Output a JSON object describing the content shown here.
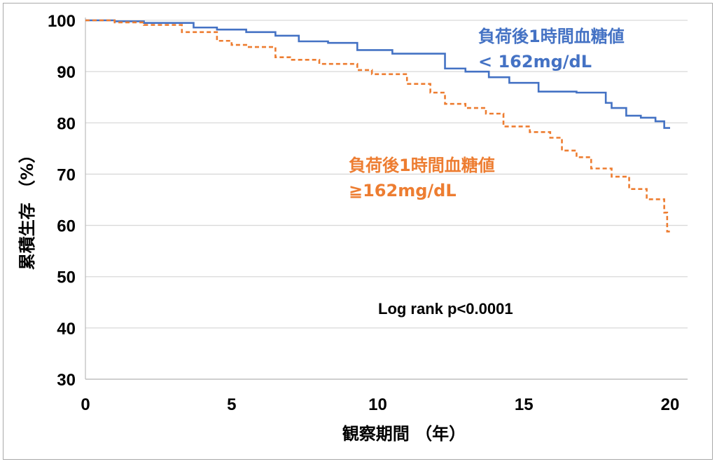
{
  "chart_data": {
    "type": "line",
    "title": "",
    "xlabel": "観察期間 （年）",
    "ylabel": "累積生存 （%）",
    "xlim": [
      0,
      20
    ],
    "ylim": [
      30,
      100
    ],
    "x_ticks": [
      "0",
      "5",
      "10",
      "15",
      "20"
    ],
    "y_ticks": [
      "100",
      "90",
      "80",
      "70",
      "60",
      "50",
      "40",
      "30"
    ],
    "grid": "horizontal",
    "annotation": "Log rank p<0.0001",
    "series": [
      {
        "name": "負荷後1時間血糖値 < 162mg/dL",
        "label_lines": [
          "負荷後1時間血糖値",
          "< 162mg/dL"
        ],
        "color": "#4472c4",
        "style": "solid",
        "x": [
          0,
          1,
          2,
          3,
          3.7,
          4.5,
          5.5,
          6.5,
          7.3,
          8.3,
          9.3,
          10.5,
          12.3,
          13,
          13.8,
          14.5,
          15.5,
          16.8,
          17.8,
          18,
          18.5,
          19,
          19.5,
          19.8,
          20
        ],
        "y": [
          100,
          99.8,
          99.5,
          99.5,
          98.6,
          98.2,
          97.7,
          97,
          95.9,
          95.6,
          94.2,
          93.5,
          90.6,
          90,
          88.9,
          87.8,
          86.1,
          85.9,
          83.9,
          82.9,
          81.4,
          81,
          80.3,
          79,
          79
        ]
      },
      {
        "name": "負荷後1時間血糖値 ≧162mg/dL",
        "label_lines": [
          "負荷後1時間血糖値",
          "≧162mg/dL"
        ],
        "color": "#ed7d31",
        "style": "dashed",
        "x": [
          0,
          1,
          2,
          3.3,
          4.5,
          5,
          5.5,
          6.5,
          7,
          8,
          9.3,
          9.8,
          11,
          11.8,
          12.3,
          13,
          13.7,
          14.3,
          15.2,
          15.9,
          16.3,
          16.8,
          17.3,
          18,
          18.6,
          19.2,
          19.8,
          19.9,
          20
        ],
        "y": [
          100,
          99.6,
          99.1,
          97.7,
          96,
          95.2,
          94.8,
          92.8,
          92.3,
          91.5,
          90.3,
          89.5,
          87.6,
          85.9,
          83.7,
          82.9,
          81.8,
          79.3,
          78.2,
          77.1,
          74.6,
          73.3,
          71.1,
          69.5,
          67.1,
          65.1,
          62.5,
          58.8,
          58.8
        ]
      }
    ]
  }
}
